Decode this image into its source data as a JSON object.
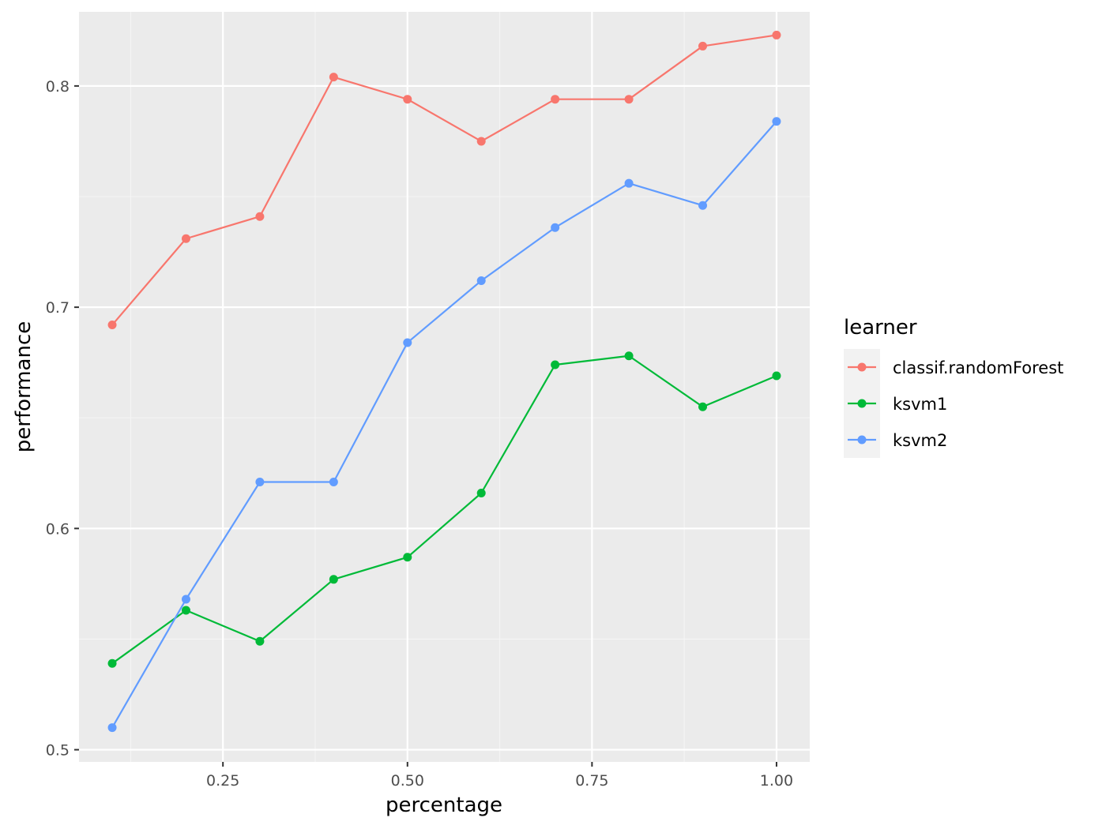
{
  "chart_data": {
    "type": "line",
    "xlabel": "percentage",
    "ylabel": "performance",
    "xlim": [
      0.055,
      1.045
    ],
    "ylim": [
      0.4945,
      0.8335
    ],
    "x_ticks": [
      0.25,
      0.5,
      0.75,
      1.0
    ],
    "x_tick_labels": [
      "0.25",
      "0.50",
      "0.75",
      "1.00"
    ],
    "y_ticks": [
      0.5,
      0.6,
      0.7,
      0.8
    ],
    "y_tick_labels": [
      "0.5",
      "0.6",
      "0.7",
      "0.8"
    ],
    "grid": true,
    "legend": {
      "title": "learner",
      "position": "right"
    },
    "x": [
      0.1,
      0.2,
      0.3,
      0.4,
      0.5,
      0.6,
      0.7,
      0.8,
      0.9,
      1.0
    ],
    "series": [
      {
        "name": "classif.randomForest",
        "color": "#F8766D",
        "values": [
          0.692,
          0.731,
          0.741,
          0.804,
          0.794,
          0.775,
          0.794,
          0.794,
          0.818,
          0.823
        ]
      },
      {
        "name": "ksvm1",
        "color": "#00BA38",
        "values": [
          0.539,
          0.563,
          0.549,
          0.577,
          0.587,
          0.616,
          0.674,
          0.678,
          0.655,
          0.669
        ]
      },
      {
        "name": "ksvm2",
        "color": "#619CFF",
        "values": [
          0.51,
          0.568,
          0.621,
          0.621,
          0.684,
          0.712,
          0.736,
          0.756,
          0.746,
          0.784
        ]
      }
    ]
  },
  "colors": {
    "panel_background": "#EBEBEB",
    "grid_major": "#FFFFFF",
    "grid_minor": "#F5F5F5"
  }
}
